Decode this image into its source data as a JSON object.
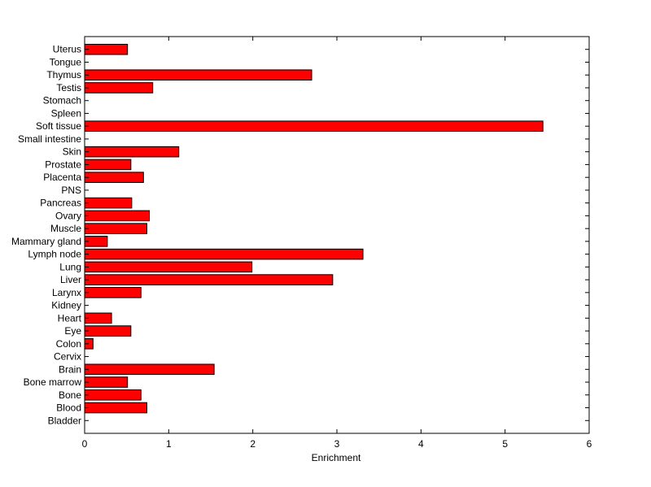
{
  "chart_data": {
    "type": "bar",
    "orientation": "horizontal",
    "title": "",
    "xlabel": "Enrichment",
    "ylabel": "",
    "xlim": [
      0,
      6
    ],
    "xticks": [
      0,
      1,
      2,
      3,
      4,
      5,
      6
    ],
    "bar_color": "#ff0000",
    "edge_color": "#000000",
    "grid": false,
    "categories": [
      "Bladder",
      "Blood",
      "Bone",
      "Bone marrow",
      "Brain",
      "Cervix",
      "Colon",
      "Eye",
      "Heart",
      "Kidney",
      "Larynx",
      "Liver",
      "Lung",
      "Lymph node",
      "Mammary gland",
      "Muscle",
      "Ovary",
      "Pancreas",
      "PNS",
      "Placenta",
      "Prostate",
      "Skin",
      "Small intestine",
      "Soft tissue",
      "Spleen",
      "Stomach",
      "Testis",
      "Thymus",
      "Tongue",
      "Uterus"
    ],
    "values": [
      0,
      0.74,
      0.67,
      0.51,
      1.54,
      0,
      0.1,
      0.55,
      0.32,
      0,
      0.67,
      2.95,
      1.99,
      3.31,
      0.27,
      0.74,
      0.77,
      0.56,
      0,
      0.7,
      0.55,
      1.12,
      0,
      5.45,
      0,
      0,
      0.81,
      2.7,
      0,
      0.51
    ]
  }
}
